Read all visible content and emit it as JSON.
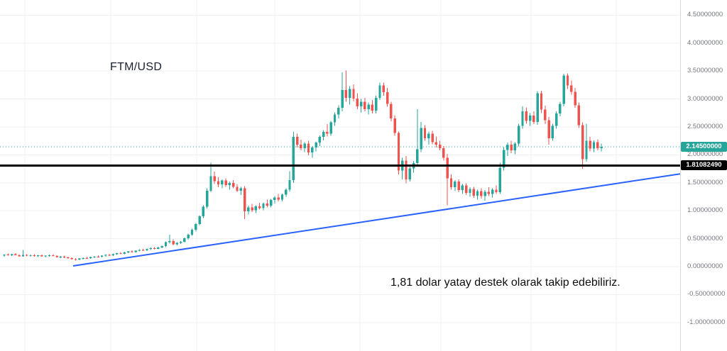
{
  "header": {
    "symbol_title": "FTM/USD"
  },
  "annotation": {
    "text": "1,81 dolar yatay destek olarak takip edebiliriz."
  },
  "price_axis": {
    "labels": [
      {
        "text": "4.50000000",
        "value": 4.5
      },
      {
        "text": "4.00000000",
        "value": 4.0
      },
      {
        "text": "3.50000000",
        "value": 3.5
      },
      {
        "text": "3.00000000",
        "value": 3.0
      },
      {
        "text": "2.50000000",
        "value": 2.5
      },
      {
        "text": "2.00000000",
        "value": 2.0
      },
      {
        "text": "1.50000000",
        "value": 1.5
      },
      {
        "text": "1.00000000",
        "value": 1.0
      },
      {
        "text": "0.50000000",
        "value": 0.5
      },
      {
        "text": "0.00000000",
        "value": 0.0
      },
      {
        "text": "-0.50000000",
        "value": -0.5
      },
      {
        "text": "-1.00000000",
        "value": -1.0
      }
    ],
    "current_price_badge": {
      "text": "2.14500000",
      "value": 2.145,
      "bg": "#26a69a"
    },
    "support_badge": {
      "text": "1.81082490",
      "value": 1.8108249,
      "bg": "#000000"
    }
  },
  "chart_data": {
    "type": "candlestick",
    "title": "FTM/USD",
    "ylim": [
      -1.51,
      4.77
    ],
    "y_ticks": [
      4.5,
      4.0,
      3.5,
      3.0,
      2.5,
      2.0,
      1.5,
      1.0,
      0.5,
      0.0,
      -0.5,
      -1.0
    ],
    "grid": "faint",
    "legend_position": "none",
    "current_price": 2.145,
    "support_level": 1.8108249,
    "annotation_text": "1,81 dolar yatay destek olarak takip edebiliriz.",
    "colors": {
      "up": "#26a69a",
      "down": "#ef5350",
      "current_price_line": "#26a69a",
      "support_line": "#000000",
      "trendline": "#2962ff"
    },
    "trendline": {
      "from": {
        "x_frac": 0.1075,
        "price": 0.013
      },
      "to": {
        "x_frac": 1.0,
        "price": 1.66
      }
    },
    "ohlc": [
      [
        0.195,
        0.225,
        0.18,
        0.215
      ],
      [
        0.215,
        0.235,
        0.195,
        0.205
      ],
      [
        0.205,
        0.23,
        0.19,
        0.22
      ],
      [
        0.22,
        0.24,
        0.2,
        0.205
      ],
      [
        0.205,
        0.22,
        0.175,
        0.185
      ],
      [
        0.185,
        0.3,
        0.175,
        0.21
      ],
      [
        0.21,
        0.225,
        0.185,
        0.195
      ],
      [
        0.195,
        0.215,
        0.18,
        0.205
      ],
      [
        0.205,
        0.22,
        0.18,
        0.19
      ],
      [
        0.19,
        0.21,
        0.17,
        0.2
      ],
      [
        0.2,
        0.215,
        0.175,
        0.185
      ],
      [
        0.185,
        0.205,
        0.165,
        0.195
      ],
      [
        0.195,
        0.215,
        0.18,
        0.205
      ],
      [
        0.205,
        0.22,
        0.185,
        0.19
      ],
      [
        0.19,
        0.2,
        0.16,
        0.17
      ],
      [
        0.17,
        0.19,
        0.15,
        0.18
      ],
      [
        0.18,
        0.195,
        0.155,
        0.165
      ],
      [
        0.165,
        0.18,
        0.14,
        0.15
      ],
      [
        0.15,
        0.165,
        0.125,
        0.135
      ],
      [
        0.135,
        0.15,
        0.11,
        0.125
      ],
      [
        0.125,
        0.155,
        0.115,
        0.145
      ],
      [
        0.145,
        0.165,
        0.13,
        0.155
      ],
      [
        0.155,
        0.175,
        0.14,
        0.15
      ],
      [
        0.15,
        0.18,
        0.14,
        0.17
      ],
      [
        0.17,
        0.19,
        0.155,
        0.18
      ],
      [
        0.18,
        0.2,
        0.165,
        0.175
      ],
      [
        0.175,
        0.205,
        0.165,
        0.195
      ],
      [
        0.195,
        0.22,
        0.18,
        0.21
      ],
      [
        0.21,
        0.23,
        0.19,
        0.2
      ],
      [
        0.2,
        0.235,
        0.19,
        0.225
      ],
      [
        0.225,
        0.25,
        0.21,
        0.24
      ],
      [
        0.24,
        0.26,
        0.22,
        0.23
      ],
      [
        0.23,
        0.265,
        0.22,
        0.255
      ],
      [
        0.255,
        0.28,
        0.24,
        0.27
      ],
      [
        0.27,
        0.29,
        0.25,
        0.26
      ],
      [
        0.26,
        0.295,
        0.25,
        0.285
      ],
      [
        0.285,
        0.31,
        0.27,
        0.3
      ],
      [
        0.3,
        0.32,
        0.28,
        0.29
      ],
      [
        0.29,
        0.325,
        0.28,
        0.315
      ],
      [
        0.315,
        0.34,
        0.3,
        0.33
      ],
      [
        0.33,
        0.35,
        0.31,
        0.32
      ],
      [
        0.32,
        0.355,
        0.31,
        0.345
      ],
      [
        0.345,
        0.375,
        0.33,
        0.365
      ],
      [
        0.365,
        0.45,
        0.35,
        0.435
      ],
      [
        0.435,
        0.57,
        0.41,
        0.455
      ],
      [
        0.455,
        0.49,
        0.38,
        0.4
      ],
      [
        0.4,
        0.44,
        0.38,
        0.425
      ],
      [
        0.425,
        0.46,
        0.405,
        0.445
      ],
      [
        0.445,
        0.52,
        0.43,
        0.505
      ],
      [
        0.505,
        0.59,
        0.48,
        0.57
      ],
      [
        0.57,
        0.68,
        0.55,
        0.66
      ],
      [
        0.66,
        0.78,
        0.63,
        0.76
      ],
      [
        0.76,
        0.92,
        0.74,
        0.9
      ],
      [
        0.9,
        1.1,
        0.87,
        1.07
      ],
      [
        1.07,
        1.4,
        1.04,
        1.36
      ],
      [
        1.36,
        1.86,
        1.33,
        1.62
      ],
      [
        1.62,
        1.7,
        1.48,
        1.53
      ],
      [
        1.53,
        1.6,
        1.42,
        1.47
      ],
      [
        1.47,
        1.56,
        1.4,
        1.54
      ],
      [
        1.54,
        1.58,
        1.43,
        1.46
      ],
      [
        1.46,
        1.52,
        1.38,
        1.5
      ],
      [
        1.5,
        1.55,
        1.4,
        1.43
      ],
      [
        1.43,
        1.48,
        1.33,
        1.36
      ],
      [
        1.36,
        1.43,
        1.28,
        1.4
      ],
      [
        1.4,
        1.44,
        0.85,
        0.99
      ],
      [
        0.99,
        1.09,
        0.93,
        1.06
      ],
      [
        1.06,
        1.12,
        0.98,
        1.01
      ],
      [
        1.01,
        1.1,
        0.96,
        1.08
      ],
      [
        1.08,
        1.14,
        1.02,
        1.05
      ],
      [
        1.05,
        1.15,
        1.01,
        1.13
      ],
      [
        1.13,
        1.2,
        1.06,
        1.09
      ],
      [
        1.09,
        1.21,
        1.06,
        1.19
      ],
      [
        1.19,
        1.26,
        1.13,
        1.24
      ],
      [
        1.24,
        1.3,
        1.17,
        1.2
      ],
      [
        1.2,
        1.31,
        1.17,
        1.29
      ],
      [
        1.29,
        1.4,
        1.25,
        1.38
      ],
      [
        1.38,
        1.71,
        1.34,
        1.55
      ],
      [
        1.55,
        2.41,
        1.5,
        2.32
      ],
      [
        2.32,
        2.38,
        2.13,
        2.18
      ],
      [
        2.18,
        2.27,
        2.08,
        2.12
      ],
      [
        2.12,
        2.23,
        2.05,
        2.2
      ],
      [
        2.2,
        2.25,
        1.99,
        2.04
      ],
      [
        2.04,
        2.16,
        1.95,
        2.13
      ],
      [
        2.13,
        2.24,
        2.06,
        2.22
      ],
      [
        2.22,
        2.35,
        2.16,
        2.32
      ],
      [
        2.32,
        2.44,
        2.26,
        2.41
      ],
      [
        2.41,
        2.55,
        2.33,
        2.38
      ],
      [
        2.38,
        2.61,
        2.34,
        2.58
      ],
      [
        2.58,
        2.76,
        2.52,
        2.72
      ],
      [
        2.72,
        2.89,
        2.65,
        2.84
      ],
      [
        2.84,
        3.48,
        2.78,
        3.16
      ],
      [
        3.16,
        3.51,
        2.95,
        3.02
      ],
      [
        3.02,
        3.23,
        2.9,
        3.18
      ],
      [
        3.18,
        3.26,
        2.96,
        3.01
      ],
      [
        3.01,
        3.1,
        2.82,
        2.87
      ],
      [
        2.87,
        3.0,
        2.76,
        2.95
      ],
      [
        2.95,
        3.02,
        2.78,
        2.82
      ],
      [
        2.82,
        2.94,
        2.72,
        2.9
      ],
      [
        2.9,
        2.98,
        2.74,
        2.79
      ],
      [
        2.79,
        3.06,
        2.74,
        3.02
      ],
      [
        3.02,
        3.29,
        2.98,
        3.24
      ],
      [
        3.24,
        3.29,
        3.06,
        3.12
      ],
      [
        3.12,
        3.2,
        2.86,
        2.91
      ],
      [
        2.91,
        2.95,
        2.6,
        2.65
      ],
      [
        2.65,
        2.7,
        2.34,
        2.39
      ],
      [
        2.39,
        2.42,
        1.65,
        1.72
      ],
      [
        1.72,
        1.95,
        1.56,
        1.9
      ],
      [
        1.9,
        1.98,
        1.49,
        1.56
      ],
      [
        1.56,
        1.8,
        1.52,
        1.76
      ],
      [
        1.76,
        1.89,
        1.68,
        1.85
      ],
      [
        1.85,
        2.82,
        1.8,
        2.1
      ],
      [
        2.1,
        2.59,
        2.05,
        2.48
      ],
      [
        2.48,
        2.53,
        2.25,
        2.3
      ],
      [
        2.3,
        2.42,
        2.18,
        2.38
      ],
      [
        2.38,
        2.43,
        2.19,
        2.23
      ],
      [
        2.23,
        2.33,
        2.13,
        2.18
      ],
      [
        2.18,
        2.25,
        2.08,
        2.12
      ],
      [
        2.12,
        2.16,
        1.9,
        1.95
      ],
      [
        1.95,
        2.02,
        1.1,
        1.58
      ],
      [
        1.58,
        1.65,
        1.38,
        1.42
      ],
      [
        1.42,
        1.55,
        1.35,
        1.52
      ],
      [
        1.52,
        1.56,
        1.33,
        1.37
      ],
      [
        1.37,
        1.48,
        1.3,
        1.45
      ],
      [
        1.45,
        1.49,
        1.28,
        1.32
      ],
      [
        1.32,
        1.42,
        1.25,
        1.39
      ],
      [
        1.39,
        1.43,
        1.23,
        1.27
      ],
      [
        1.27,
        1.38,
        1.2,
        1.35
      ],
      [
        1.35,
        1.4,
        1.22,
        1.26
      ],
      [
        1.26,
        1.37,
        1.18,
        1.34
      ],
      [
        1.34,
        1.42,
        1.26,
        1.3
      ],
      [
        1.3,
        1.4,
        1.24,
        1.38
      ],
      [
        1.38,
        1.45,
        1.3,
        1.33
      ],
      [
        1.33,
        1.86,
        1.3,
        1.77
      ],
      [
        1.77,
        2.14,
        1.72,
        2.09
      ],
      [
        2.09,
        2.22,
        1.98,
        2.18
      ],
      [
        2.18,
        2.25,
        2.03,
        2.08
      ],
      [
        2.08,
        2.23,
        2.01,
        2.2
      ],
      [
        2.2,
        2.56,
        2.15,
        2.52
      ],
      [
        2.52,
        2.87,
        2.47,
        2.78
      ],
      [
        2.78,
        2.85,
        2.56,
        2.61
      ],
      [
        2.61,
        2.75,
        2.52,
        2.7
      ],
      [
        2.7,
        2.78,
        2.55,
        2.59
      ],
      [
        2.59,
        3.14,
        2.54,
        3.1
      ],
      [
        3.1,
        3.15,
        2.75,
        2.81
      ],
      [
        2.81,
        2.88,
        2.55,
        2.62
      ],
      [
        2.62,
        2.68,
        2.18,
        2.3
      ],
      [
        2.3,
        2.56,
        2.25,
        2.52
      ],
      [
        2.52,
        2.78,
        2.47,
        2.74
      ],
      [
        2.74,
        2.95,
        2.69,
        2.91
      ],
      [
        2.91,
        3.45,
        2.87,
        3.42
      ],
      [
        3.42,
        3.46,
        3.18,
        3.24
      ],
      [
        3.24,
        3.33,
        3.08,
        3.13
      ],
      [
        3.13,
        3.2,
        2.84,
        2.89
      ],
      [
        2.89,
        2.94,
        2.48,
        2.53
      ],
      [
        2.53,
        2.58,
        1.75,
        1.92
      ],
      [
        1.92,
        2.56,
        1.88,
        2.25
      ],
      [
        2.25,
        2.32,
        2.06,
        2.11
      ],
      [
        2.11,
        2.26,
        2.05,
        2.23
      ],
      [
        2.23,
        2.28,
        2.08,
        2.12
      ],
      [
        2.12,
        2.2,
        2.06,
        2.145
      ]
    ]
  }
}
